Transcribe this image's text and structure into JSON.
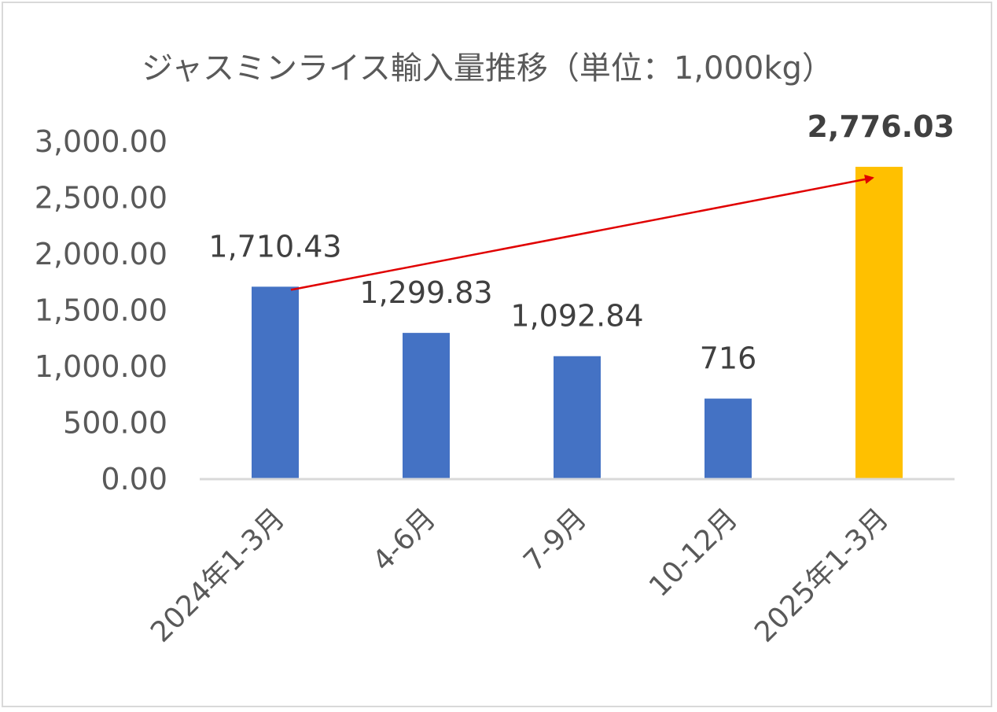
{
  "chart_data": {
    "type": "bar",
    "title": "ジャスミンライス輸入量推移（単位：1,000kg）",
    "xlabel": "",
    "ylabel": "",
    "categories": [
      "2024年1-3月",
      "4-6月",
      "7-9月",
      "10-12月",
      "2025年1-3月"
    ],
    "values": [
      1710.43,
      1299.83,
      1092.84,
      716,
      2776.03
    ],
    "data_labels": [
      "1,710.43",
      "1,299.83",
      "1,092.84",
      "716",
      "2,776.03"
    ],
    "bar_colors": [
      "#4472c4",
      "#4472c4",
      "#4472c4",
      "#4472c4",
      "#ffc000"
    ],
    "ylim": [
      0,
      3000
    ],
    "yticks": [
      0,
      500,
      1000,
      1500,
      2000,
      2500,
      3000
    ],
    "ytick_labels": [
      "0.00",
      "500.00",
      "1,000.00",
      "1,500.00",
      "2,000.00",
      "2,500.00",
      "3,000.00"
    ],
    "grid": false,
    "legend": "none",
    "annotation": {
      "type": "arrow",
      "from_category": "2024年1-3月",
      "to_category": "2025年1-3月",
      "color": "#e00000"
    }
  }
}
